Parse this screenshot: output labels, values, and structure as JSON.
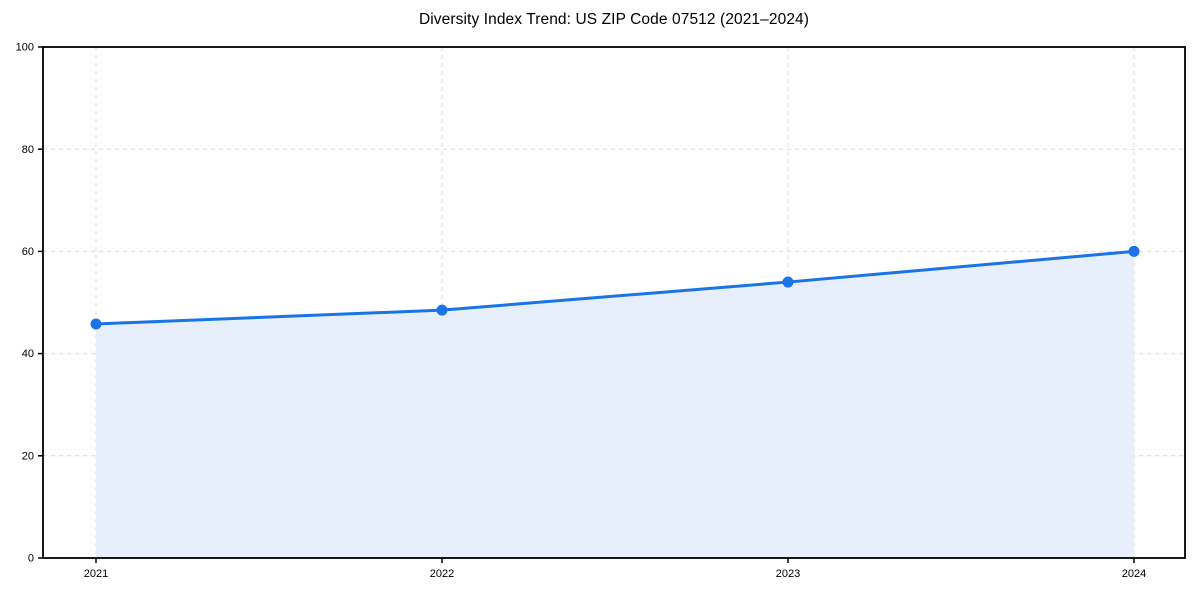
{
  "title": "Diversity Index Trend: US ZIP Code 07512 (2021–2024)",
  "colors": {
    "line": "#1a73e8",
    "marker": "#1a73e8",
    "area_fill": "#e7effc",
    "grid": "#dcdcdc",
    "spine": "#000000",
    "tick_label": "#000000",
    "background": "#ffffff"
  },
  "chart_data": {
    "type": "line",
    "area_fill": true,
    "markers": true,
    "title": "Diversity Index Trend: US ZIP Code 07512 (2021–2024)",
    "categories": [
      "2021",
      "2022",
      "2023",
      "2024"
    ],
    "series": [
      {
        "name": "Diversity Index",
        "values": [
          45.8,
          48.5,
          54.0,
          60.0
        ]
      }
    ],
    "xlabel": "",
    "ylabel": "",
    "ylim": [
      0,
      100
    ],
    "yticks": [
      0,
      20,
      40,
      60,
      80,
      100
    ],
    "ytick_labels": [
      "0",
      "20",
      "40",
      "60",
      "80",
      "100"
    ],
    "grid": true,
    "grid_style": "dashed",
    "legend": false
  }
}
